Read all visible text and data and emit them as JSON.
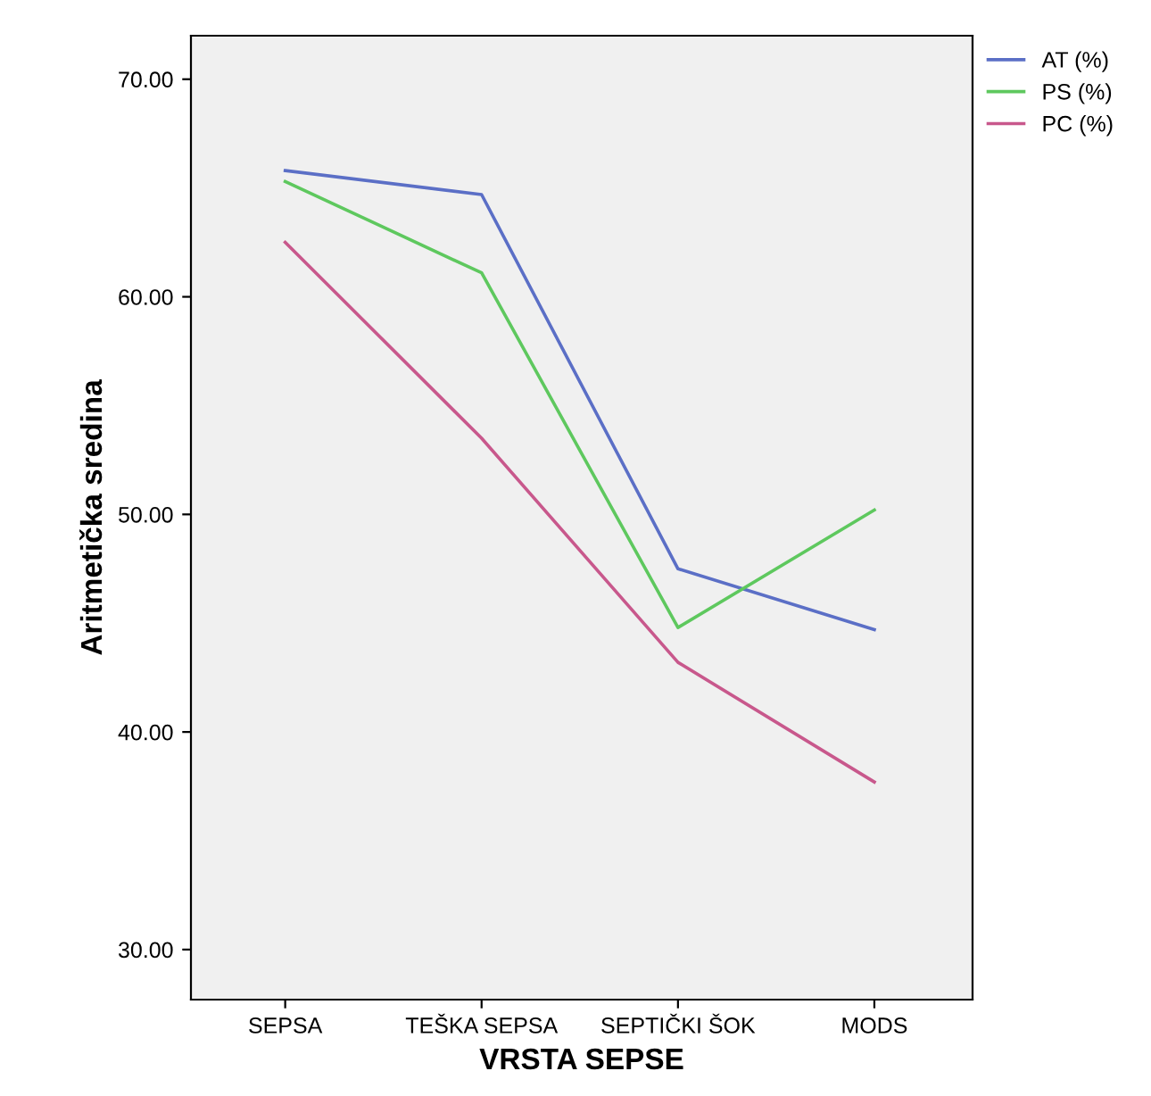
{
  "chart_data": {
    "type": "line",
    "xlabel": "VRSTA SEPSE",
    "ylabel": "Aritmetička sredina",
    "categories": [
      "SEPSA",
      "TEŠKA SEPSA",
      "SEPTIČKI ŠOK",
      "MODS"
    ],
    "series": [
      {
        "name": "AT (%)",
        "color": "#5b6fc6",
        "values": [
          65.8,
          64.7,
          47.5,
          44.7
        ]
      },
      {
        "name": "PS (%)",
        "color": "#5ec85e",
        "values": [
          65.3,
          61.1,
          44.8,
          50.2
        ]
      },
      {
        "name": "PC (%)",
        "color": "#c8588c",
        "values": [
          62.5,
          53.5,
          43.2,
          37.7
        ]
      }
    ],
    "ylim": [
      27.7,
      72.0
    ],
    "yticks": [
      {
        "value": 30,
        "label": "30.00"
      },
      {
        "value": 40,
        "label": "40.00"
      },
      {
        "value": 50,
        "label": "50.00"
      },
      {
        "value": 60,
        "label": "60.00"
      },
      {
        "value": 70,
        "label": "70.00"
      }
    ],
    "grid": false,
    "legend": "top right",
    "marker": "none",
    "line_style": "solid"
  }
}
